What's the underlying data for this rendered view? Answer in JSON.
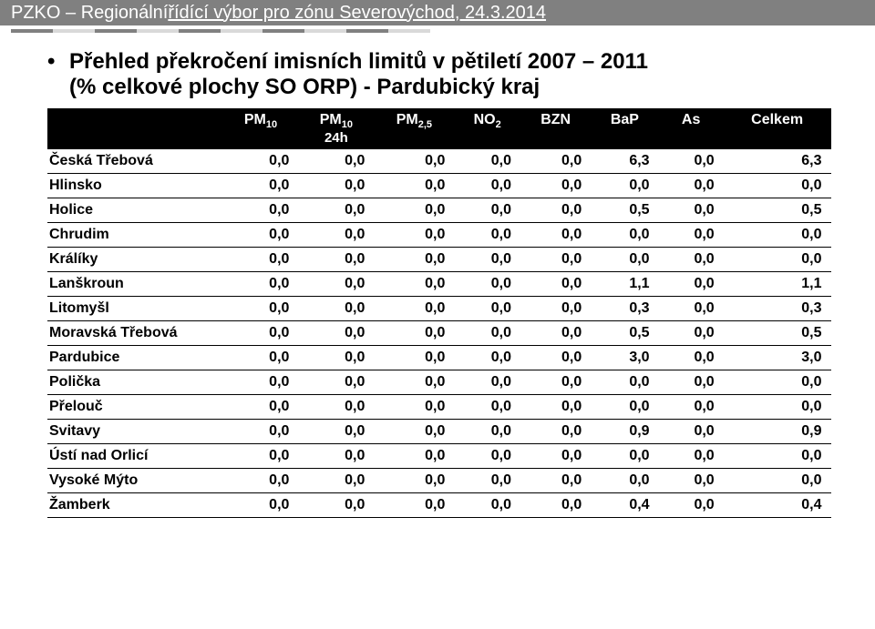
{
  "header": {
    "prefix": "PZKO – Regionální ",
    "underlined": "řídící výbor pro zónu Severovýchod, 24.3.2014"
  },
  "title": {
    "line1": "Přehled překročení imisních limitů v pětiletí 2007 – 2011",
    "line2": "(% celkové plochy SO ORP) - Pardubický kraj"
  },
  "columns": [
    {
      "label": ""
    },
    {
      "label": "PM",
      "sub": "10"
    },
    {
      "label": "PM",
      "sub": "10",
      "line2": "24h"
    },
    {
      "label": "PM",
      "sub": "2,5"
    },
    {
      "label": "NO",
      "sub": "2"
    },
    {
      "label": "BZN"
    },
    {
      "label": "BaP"
    },
    {
      "label": "As"
    },
    {
      "label": "Celkem"
    }
  ],
  "rows": [
    {
      "name": "Česká Třebová",
      "v": [
        "0,0",
        "0,0",
        "0,0",
        "0,0",
        "0,0",
        "6,3",
        "0,0",
        "6,3"
      ]
    },
    {
      "name": "Hlinsko",
      "v": [
        "0,0",
        "0,0",
        "0,0",
        "0,0",
        "0,0",
        "0,0",
        "0,0",
        "0,0"
      ]
    },
    {
      "name": "Holice",
      "v": [
        "0,0",
        "0,0",
        "0,0",
        "0,0",
        "0,0",
        "0,5",
        "0,0",
        "0,5"
      ]
    },
    {
      "name": "Chrudim",
      "v": [
        "0,0",
        "0,0",
        "0,0",
        "0,0",
        "0,0",
        "0,0",
        "0,0",
        "0,0"
      ]
    },
    {
      "name": "Králíky",
      "v": [
        "0,0",
        "0,0",
        "0,0",
        "0,0",
        "0,0",
        "0,0",
        "0,0",
        "0,0"
      ]
    },
    {
      "name": "Lanškroun",
      "v": [
        "0,0",
        "0,0",
        "0,0",
        "0,0",
        "0,0",
        "1,1",
        "0,0",
        "1,1"
      ]
    },
    {
      "name": "Litomyšl",
      "v": [
        "0,0",
        "0,0",
        "0,0",
        "0,0",
        "0,0",
        "0,3",
        "0,0",
        "0,3"
      ]
    },
    {
      "name": "Moravská Třebová",
      "v": [
        "0,0",
        "0,0",
        "0,0",
        "0,0",
        "0,0",
        "0,5",
        "0,0",
        "0,5"
      ]
    },
    {
      "name": "Pardubice",
      "v": [
        "0,0",
        "0,0",
        "0,0",
        "0,0",
        "0,0",
        "3,0",
        "0,0",
        "3,0"
      ]
    },
    {
      "name": "Polička",
      "v": [
        "0,0",
        "0,0",
        "0,0",
        "0,0",
        "0,0",
        "0,0",
        "0,0",
        "0,0"
      ]
    },
    {
      "name": "Přelouč",
      "v": [
        "0,0",
        "0,0",
        "0,0",
        "0,0",
        "0,0",
        "0,0",
        "0,0",
        "0,0"
      ]
    },
    {
      "name": "Svitavy",
      "v": [
        "0,0",
        "0,0",
        "0,0",
        "0,0",
        "0,0",
        "0,9",
        "0,0",
        "0,9"
      ]
    },
    {
      "name": "Ústí nad Orlicí",
      "v": [
        "0,0",
        "0,0",
        "0,0",
        "0,0",
        "0,0",
        "0,0",
        "0,0",
        "0,0"
      ]
    },
    {
      "name": "Vysoké Mýto",
      "v": [
        "0,0",
        "0,0",
        "0,0",
        "0,0",
        "0,0",
        "0,0",
        "0,0",
        "0,0"
      ]
    },
    {
      "name": "Žamberk",
      "v": [
        "0,0",
        "0,0",
        "0,0",
        "0,0",
        "0,0",
        "0,4",
        "0,0",
        "0,4"
      ]
    }
  ]
}
